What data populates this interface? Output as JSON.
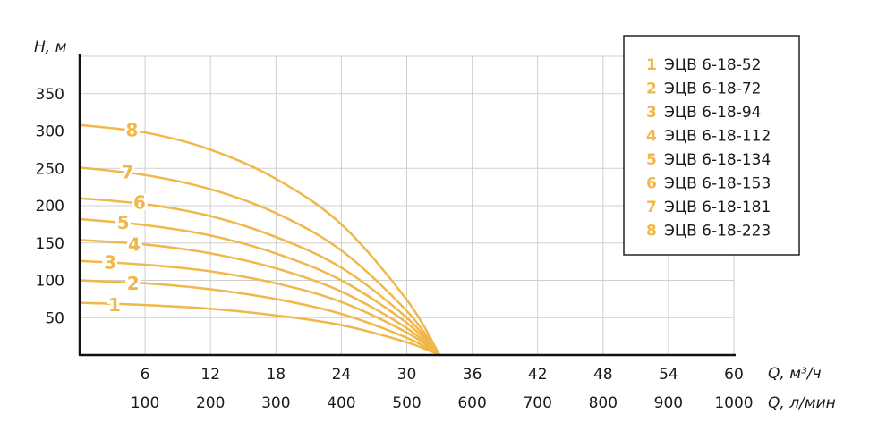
{
  "chart_data": {
    "type": "line",
    "ylabel": "H, м",
    "xlabel": "Q, м³/ч",
    "xlabel2": "Q, л/мин",
    "xlim": [
      0,
      60
    ],
    "ylim": [
      0,
      400
    ],
    "x_ticks": [
      "6",
      "12",
      "18",
      "24",
      "30",
      "36",
      "42",
      "48",
      "54",
      "60"
    ],
    "x2_ticks": [
      "100",
      "200",
      "300",
      "400",
      "500",
      "600",
      "700",
      "800",
      "900",
      "1000"
    ],
    "y_ticks": [
      "50",
      "100",
      "150",
      "200",
      "250",
      "300",
      "350"
    ],
    "grid": true,
    "legend_position": "top-right",
    "color": "#f0b84a",
    "series": [
      {
        "num": "1",
        "name": "ЭЦВ 6-18-52",
        "points": [
          [
            0,
            70
          ],
          [
            6,
            67
          ],
          [
            12,
            62
          ],
          [
            18,
            53
          ],
          [
            24,
            40
          ],
          [
            30,
            17
          ],
          [
            33,
            0
          ]
        ]
      },
      {
        "num": "2",
        "name": "ЭЦВ 6-18-72",
        "points": [
          [
            0,
            100
          ],
          [
            6,
            96
          ],
          [
            12,
            88
          ],
          [
            18,
            75
          ],
          [
            24,
            55
          ],
          [
            30,
            23
          ],
          [
            33,
            0
          ]
        ]
      },
      {
        "num": "3",
        "name": "ЭЦВ 6-18-94",
        "points": [
          [
            0,
            126
          ],
          [
            6,
            121
          ],
          [
            12,
            112
          ],
          [
            18,
            96
          ],
          [
            24,
            71
          ],
          [
            30,
            30
          ],
          [
            33,
            0
          ]
        ]
      },
      {
        "num": "4",
        "name": "ЭЦВ 6-18-112",
        "points": [
          [
            0,
            154
          ],
          [
            6,
            148
          ],
          [
            12,
            136
          ],
          [
            18,
            116
          ],
          [
            24,
            85
          ],
          [
            30,
            36
          ],
          [
            33,
            0
          ]
        ]
      },
      {
        "num": "5",
        "name": "ЭЦВ 6-18-134",
        "points": [
          [
            0,
            182
          ],
          [
            6,
            174
          ],
          [
            12,
            160
          ],
          [
            18,
            136
          ],
          [
            24,
            100
          ],
          [
            30,
            43
          ],
          [
            33,
            0
          ]
        ]
      },
      {
        "num": "6",
        "name": "ЭЦВ 6-18-153",
        "points": [
          [
            0,
            210
          ],
          [
            6,
            202
          ],
          [
            12,
            186
          ],
          [
            18,
            158
          ],
          [
            24,
            117
          ],
          [
            30,
            50
          ],
          [
            33,
            0
          ]
        ]
      },
      {
        "num": "7",
        "name": "ЭЦВ 6-18-181",
        "points": [
          [
            0,
            251
          ],
          [
            6,
            241
          ],
          [
            12,
            222
          ],
          [
            18,
            190
          ],
          [
            24,
            140
          ],
          [
            30,
            59
          ],
          [
            33,
            0
          ]
        ]
      },
      {
        "num": "8",
        "name": "ЭЦВ 6-18-223",
        "points": [
          [
            0,
            308
          ],
          [
            6,
            298
          ],
          [
            12,
            275
          ],
          [
            18,
            236
          ],
          [
            24,
            175
          ],
          [
            30,
            74
          ],
          [
            33,
            0
          ]
        ]
      }
    ],
    "curve_labels": [
      {
        "num": "1",
        "x": 3.2,
        "y": 67
      },
      {
        "num": "2",
        "x": 4.9,
        "y": 96
      },
      {
        "num": "3",
        "x": 2.8,
        "y": 124
      },
      {
        "num": "4",
        "x": 5.0,
        "y": 148
      },
      {
        "num": "5",
        "x": 4.0,
        "y": 177
      },
      {
        "num": "6",
        "x": 5.5,
        "y": 204
      },
      {
        "num": "7",
        "x": 4.4,
        "y": 245
      },
      {
        "num": "8",
        "x": 4.8,
        "y": 301
      }
    ]
  }
}
